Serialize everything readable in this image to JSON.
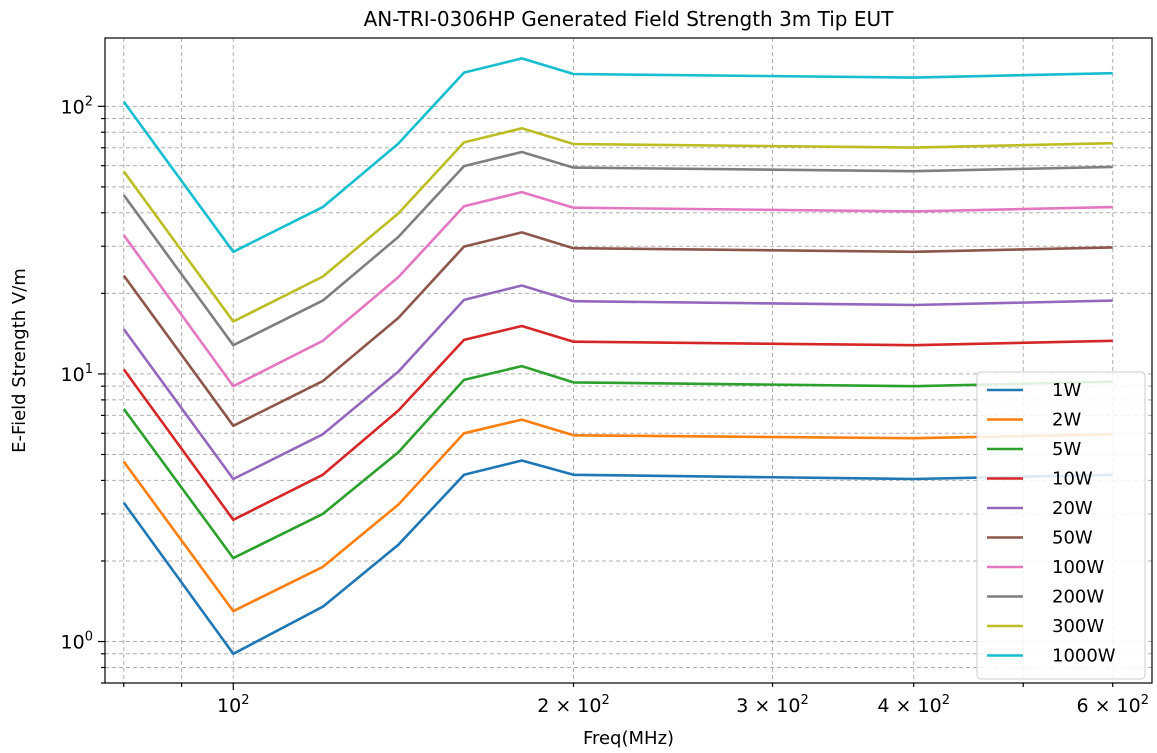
{
  "chart_data": {
    "type": "line",
    "title": "AN-TRI-0306HP Generated Field Strength 3m Tip EUT",
    "xlabel": "Freq(MHz)",
    "ylabel": "E-Field Strength V/m",
    "xscale": "log",
    "yscale": "log",
    "xlim": [
      77,
      650
    ],
    "ylim": [
      0.7,
      180
    ],
    "grid": true,
    "legend_position": "lower-right",
    "x": [
      80,
      100,
      120,
      140,
      160,
      180,
      200,
      400,
      600
    ],
    "x_tick_labels": [
      {
        "value": 100,
        "mantissa": "",
        "exp": "2"
      },
      {
        "value": 200,
        "mantissa": "2 × ",
        "exp": "2"
      },
      {
        "value": 300,
        "mantissa": "3 × ",
        "exp": "2"
      },
      {
        "value": 400,
        "mantissa": "4 × ",
        "exp": "2"
      },
      {
        "value": 600,
        "mantissa": "6 × ",
        "exp": "2"
      }
    ],
    "y_tick_labels": [
      {
        "value": 1,
        "exp": "0"
      },
      {
        "value": 10,
        "exp": "1"
      },
      {
        "value": 100,
        "exp": "2"
      }
    ],
    "series": [
      {
        "name": "1W",
        "color": "#1f77b4",
        "values": [
          3.3,
          0.9,
          1.35,
          2.3,
          4.2,
          4.75,
          4.2,
          4.05,
          4.2
        ]
      },
      {
        "name": "2W",
        "color": "#ff7f0e",
        "values": [
          4.7,
          1.3,
          1.9,
          3.25,
          6.0,
          6.75,
          5.9,
          5.75,
          5.95
        ]
      },
      {
        "name": "5W",
        "color": "#2ca02c",
        "values": [
          7.4,
          2.05,
          3.0,
          5.1,
          9.5,
          10.7,
          9.3,
          9.0,
          9.35
        ]
      },
      {
        "name": "10W",
        "color": "#d62728",
        "values": [
          10.4,
          2.85,
          4.2,
          7.3,
          13.4,
          15.1,
          13.2,
          12.8,
          13.3
        ]
      },
      {
        "name": "20W",
        "color": "#9467bd",
        "values": [
          14.7,
          4.05,
          5.95,
          10.2,
          18.9,
          21.4,
          18.7,
          18.1,
          18.8
        ]
      },
      {
        "name": "50W",
        "color": "#8c564b",
        "values": [
          23.3,
          6.4,
          9.4,
          16.2,
          29.9,
          33.8,
          29.5,
          28.6,
          29.7
        ]
      },
      {
        "name": "100W",
        "color": "#e377c2",
        "values": [
          33.0,
          9.0,
          13.3,
          23.0,
          42.3,
          47.8,
          41.8,
          40.5,
          42.0
        ]
      },
      {
        "name": "200W",
        "color": "#7f7f7f",
        "values": [
          46.6,
          12.8,
          18.8,
          32.5,
          59.8,
          67.5,
          59.0,
          57.2,
          59.4
        ]
      },
      {
        "name": "300W",
        "color": "#bcbd22",
        "values": [
          57.1,
          15.7,
          23.1,
          39.8,
          73.3,
          82.8,
          72.3,
          70.1,
          72.8
        ]
      },
      {
        "name": "1000W",
        "color": "#17becf",
        "values": [
          104.0,
          28.6,
          42.0,
          72.6,
          133.7,
          151.0,
          132.0,
          128.0,
          133.0
        ]
      }
    ]
  }
}
